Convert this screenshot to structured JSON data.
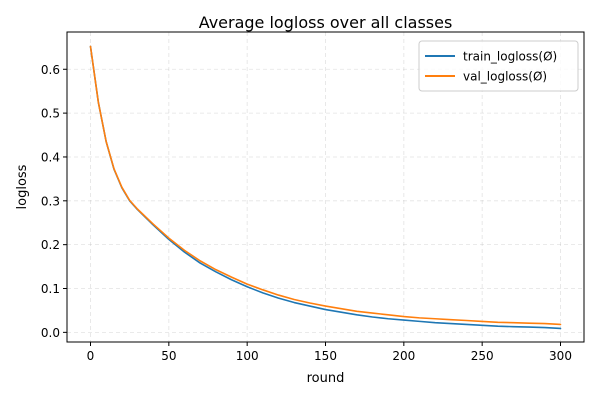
{
  "chart_data": {
    "type": "line",
    "title": "Average logloss over all classes",
    "xlabel": "round",
    "ylabel": "logloss",
    "xlim": [
      -15,
      315
    ],
    "ylim": [
      -0.022,
      0.685
    ],
    "xticks": [
      0,
      50,
      100,
      150,
      200,
      250,
      300
    ],
    "xtick_labels": [
      "0",
      "50",
      "100",
      "150",
      "200",
      "250",
      "300"
    ],
    "yticks": [
      0.0,
      0.1,
      0.2,
      0.3,
      0.4,
      0.5,
      0.6
    ],
    "ytick_labels": [
      "0.0",
      "0.1",
      "0.2",
      "0.3",
      "0.4",
      "0.5",
      "0.6"
    ],
    "grid": true,
    "legend_position": "top-right",
    "x": [
      0,
      5,
      10,
      15,
      20,
      25,
      30,
      40,
      50,
      60,
      70,
      80,
      90,
      100,
      110,
      120,
      130,
      140,
      150,
      160,
      170,
      180,
      190,
      200,
      210,
      220,
      230,
      240,
      250,
      260,
      270,
      280,
      290,
      300
    ],
    "series": [
      {
        "name": "train_logloss(Ø)",
        "color": "#1f77b4",
        "values": [
          0.652,
          0.525,
          0.435,
          0.372,
          0.33,
          0.3,
          0.28,
          0.245,
          0.212,
          0.183,
          0.158,
          0.138,
          0.12,
          0.104,
          0.09,
          0.078,
          0.068,
          0.06,
          0.052,
          0.046,
          0.04,
          0.035,
          0.031,
          0.028,
          0.025,
          0.022,
          0.02,
          0.018,
          0.016,
          0.014,
          0.013,
          0.012,
          0.011,
          0.009
        ]
      },
      {
        "name": "val_logloss(Ø)",
        "color": "#ff7f0e",
        "values": [
          0.652,
          0.525,
          0.435,
          0.373,
          0.331,
          0.301,
          0.281,
          0.247,
          0.215,
          0.187,
          0.163,
          0.143,
          0.126,
          0.11,
          0.097,
          0.085,
          0.075,
          0.067,
          0.06,
          0.054,
          0.048,
          0.044,
          0.04,
          0.036,
          0.033,
          0.031,
          0.029,
          0.027,
          0.025,
          0.023,
          0.022,
          0.021,
          0.02,
          0.018
        ]
      }
    ]
  }
}
